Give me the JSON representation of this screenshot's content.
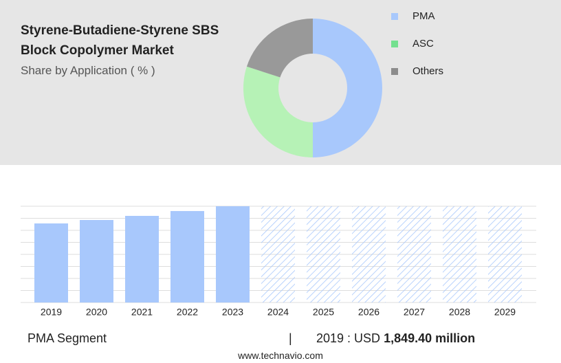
{
  "chart_data": [
    {
      "type": "donut",
      "title": "Styrene-Butadiene-Styrene SBS Block Copolymer Market",
      "subtitle": "Share by Application ( % )",
      "categories": [
        "PMA",
        "ASC",
        "Others"
      ],
      "values": [
        50,
        30,
        20
      ],
      "colors": [
        "#a8c8fc",
        "#b6f2b6",
        "#999999"
      ],
      "legend_colors": [
        "#a8c8fc",
        "#74e08f",
        "#8c8c8c"
      ]
    },
    {
      "type": "bar",
      "categories": [
        "2019",
        "2020",
        "2021",
        "2022",
        "2023",
        "2024",
        "2025",
        "2026",
        "2027",
        "2028",
        "2029"
      ],
      "values": [
        1849.4,
        1930,
        2026,
        2139,
        2251,
        null,
        null,
        null,
        null,
        null,
        null
      ],
      "value_labels": [
        "1,849.40 million",
        null,
        null,
        null,
        null,
        null,
        null,
        null,
        null,
        null,
        null
      ],
      "color": "#a8c8fc",
      "ylim": [
        0,
        2251
      ],
      "segment": "PMA Segment",
      "highlight_prefix": "2019 : USD",
      "source": "www.technavio.com"
    }
  ]
}
